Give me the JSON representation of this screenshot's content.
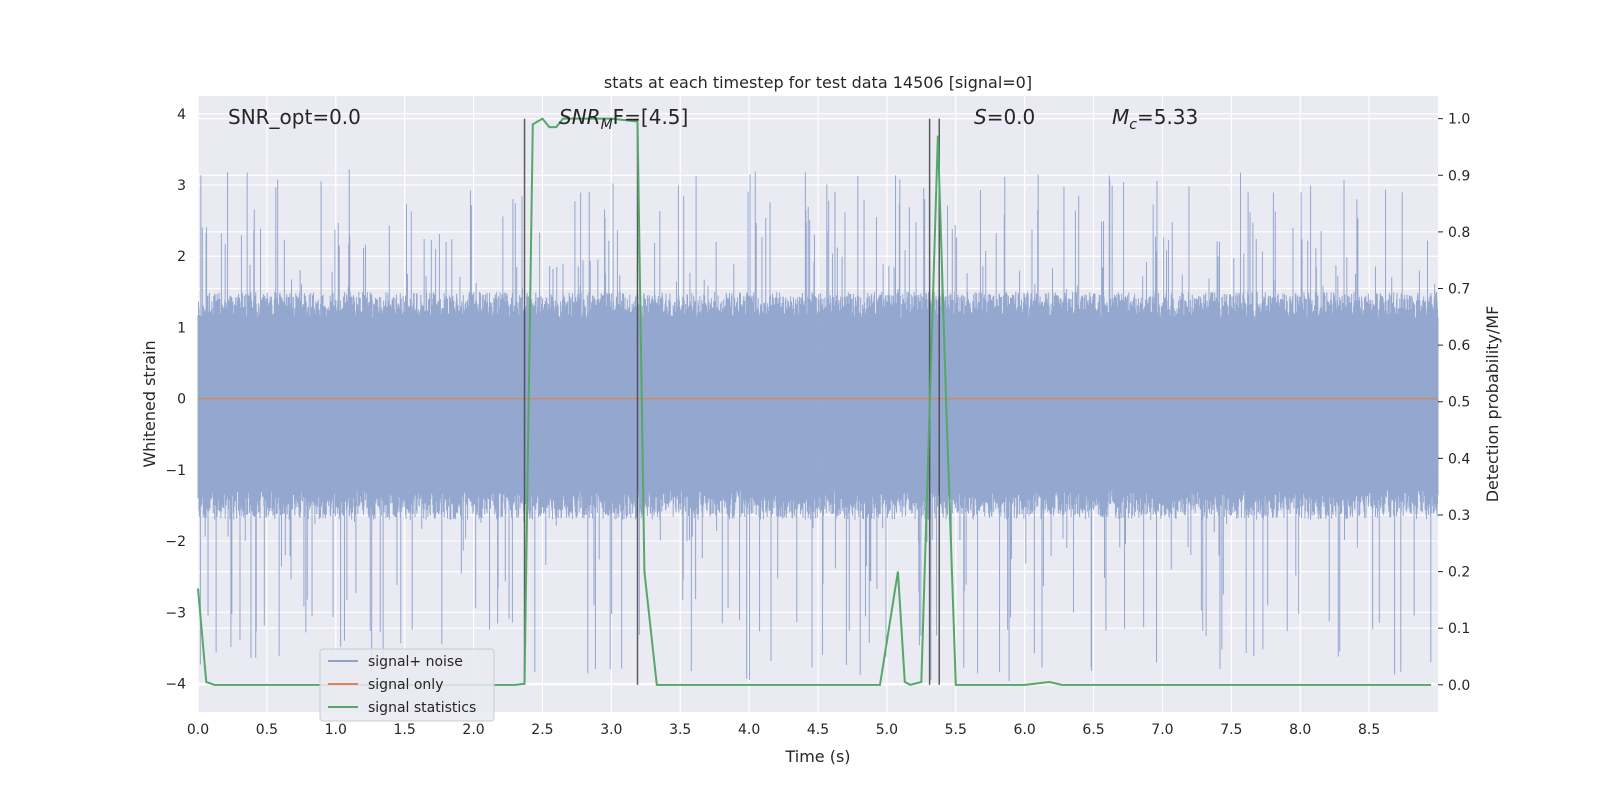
{
  "chart_data": {
    "type": "line",
    "title": "stats at each timestep for test data 14506 [signal=0]",
    "xlabel": "Time (s)",
    "ylabel": "Whitened strain",
    "y2label": "Detection probability/MF",
    "xlim": [
      0.0,
      9.0
    ],
    "ylim": [
      -4.4,
      4.25
    ],
    "y2lim": [
      -0.048,
      1.04
    ],
    "x_ticks": [
      "0.0",
      "0.5",
      "1.0",
      "1.5",
      "2.0",
      "2.5",
      "3.0",
      "3.5",
      "4.0",
      "4.5",
      "5.0",
      "5.5",
      "6.0",
      "6.5",
      "7.0",
      "7.5",
      "8.0",
      "8.5"
    ],
    "y_ticks": [
      "4",
      "3",
      "2",
      "1",
      "0",
      "−1",
      "−2",
      "−3",
      "−4"
    ],
    "y2_ticks": [
      "1.0",
      "0.9",
      "0.8",
      "0.7",
      "0.6",
      "0.5",
      "0.4",
      "0.3",
      "0.2",
      "0.1",
      "0.0"
    ],
    "grid": true,
    "legend_position": "lower-left",
    "annotations": {
      "snr_opt": "SNR_opt=0.0",
      "snr_mf_name": "SNR",
      "snr_mf_sub": "M",
      "snr_mf_rest": "F=[4.5]",
      "s_name": "S",
      "s_rest": "=0.0",
      "mc_name": "M",
      "mc_sub": "c",
      "mc_rest": "=5.33"
    },
    "vertical_lines_x": [
      2.37,
      3.19,
      5.31,
      5.38
    ],
    "series": [
      {
        "name": "signal+ noise",
        "color": "#8fa3cc",
        "noise_band": [
          -1.7,
          1.5
        ],
        "peak_range": [
          -4.0,
          3.3
        ]
      },
      {
        "name": "signal only",
        "color": "#dd8452",
        "values_constant": 0.0
      },
      {
        "name": "signal statistics",
        "color": "#55a868",
        "axis": "right",
        "x": [
          0.0,
          0.06,
          0.12,
          2.3,
          2.37,
          2.43,
          2.5,
          2.55,
          2.6,
          2.65,
          2.7,
          3.0,
          3.19,
          3.24,
          3.33,
          4.95,
          5.08,
          5.13,
          5.17,
          5.25,
          5.37,
          5.43,
          5.5,
          6.0,
          6.18,
          6.27,
          8.95
        ],
        "y": [
          0.17,
          0.005,
          0.0,
          0.0,
          0.002,
          0.99,
          1.0,
          0.985,
          0.985,
          1.0,
          1.0,
          1.0,
          0.995,
          0.2,
          0.0,
          0.0,
          0.2,
          0.005,
          0.0,
          0.005,
          0.97,
          0.5,
          0.0,
          0.0,
          0.005,
          0.0,
          0.0
        ]
      }
    ]
  }
}
